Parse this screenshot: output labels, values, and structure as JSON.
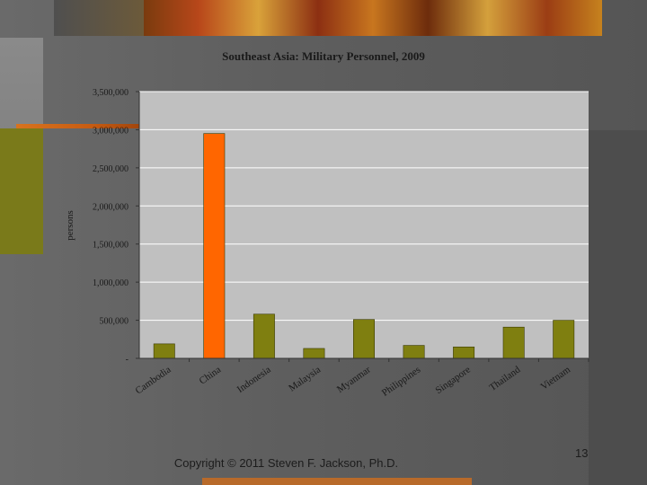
{
  "chart_data": {
    "type": "bar",
    "title": "Southeast Asia: Military Personnel, 2009",
    "xlabel": "",
    "ylabel": "persons",
    "categories": [
      "Cambodia",
      "China",
      "Indonesia",
      "Malaysia",
      "Myanmar",
      "Philippines",
      "Singapore",
      "Thailand",
      "Vietnam"
    ],
    "values": [
      190000,
      2950000,
      580000,
      130000,
      510000,
      170000,
      150000,
      410000,
      500000
    ],
    "bar_colors": [
      "#7f7f10",
      "#ff6600",
      "#7f7f10",
      "#7f7f10",
      "#7f7f10",
      "#7f7f10",
      "#7f7f10",
      "#7f7f10",
      "#7f7f10"
    ],
    "ylim": [
      0,
      3500000
    ],
    "yticks": [
      0,
      500000,
      1000000,
      1500000,
      2000000,
      2500000,
      3000000,
      3500000
    ],
    "ytick_labels": [
      "-",
      "500,000",
      "1,000,000",
      "1,500,000",
      "2,000,000",
      "2,500,000",
      "3,000,000",
      "3,500,000"
    ],
    "grid": true,
    "plot_background": "#c0c0c0"
  },
  "footer": {
    "copyright": "Copyright © 2011 Steven F. Jackson, Ph.D.",
    "page_number": "13"
  }
}
